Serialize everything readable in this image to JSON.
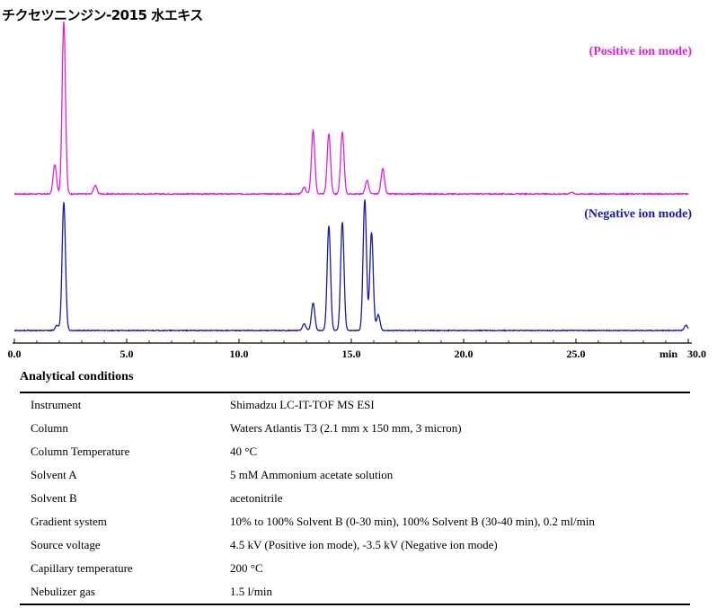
{
  "title": "チクセツニンジン-2015 水エキス",
  "chart_data": {
    "type": "line",
    "xlabel": "min",
    "xlim": [
      0.0,
      30.0
    ],
    "xticks": [
      "0.0",
      "5.0",
      "10.0",
      "15.0",
      "20.0",
      "25.0",
      "30.0"
    ],
    "series": [
      {
        "name": "(Positive ion mode)",
        "color": "#e020d8",
        "relative_intensity_peaks": [
          {
            "x": 1.8,
            "y": 0.17
          },
          {
            "x": 2.2,
            "y": 1.0
          },
          {
            "x": 3.6,
            "y": 0.05
          },
          {
            "x": 12.9,
            "y": 0.04
          },
          {
            "x": 13.3,
            "y": 0.37
          },
          {
            "x": 14.0,
            "y": 0.35
          },
          {
            "x": 14.6,
            "y": 0.36
          },
          {
            "x": 15.7,
            "y": 0.08
          },
          {
            "x": 16.4,
            "y": 0.15
          },
          {
            "x": 24.8,
            "y": 0.01
          }
        ]
      },
      {
        "name": "(Negative ion mode)",
        "color": "#1a1aa8",
        "relative_intensity_peaks": [
          {
            "x": 1.9,
            "y": 0.04
          },
          {
            "x": 2.2,
            "y": 0.98
          },
          {
            "x": 12.9,
            "y": 0.05
          },
          {
            "x": 13.3,
            "y": 0.21
          },
          {
            "x": 14.0,
            "y": 0.8
          },
          {
            "x": 14.6,
            "y": 0.83
          },
          {
            "x": 15.6,
            "y": 1.0
          },
          {
            "x": 15.9,
            "y": 0.75
          },
          {
            "x": 16.2,
            "y": 0.12
          },
          {
            "x": 29.9,
            "y": 0.04
          }
        ]
      }
    ]
  },
  "conditions": {
    "title": "Analytical conditions",
    "rows": [
      {
        "param": "Instrument",
        "value": "Shimadzu LC-IT-TOF MS ESI"
      },
      {
        "param": "Column",
        "value": "Waters Atlantis T3 (2.1 mm x 150 mm, 3 micron)"
      },
      {
        "param": "Column Temperature",
        "value": "40 °C"
      },
      {
        "param": "Solvent A",
        "value": "5 mM Ammonium acetate solution"
      },
      {
        "param": "Solvent B",
        "value": "acetonitrile"
      },
      {
        "param": "Gradient system",
        "value": "10% to 100% Solvent B (0-30 min), 100% Solvent B (30-40 min), 0.2 ml/min"
      },
      {
        "param": "Source voltage",
        "value": "4.5 kV (Positive ion mode), -3.5 kV (Negative ion mode)"
      },
      {
        "param": "Capillary temperature",
        "value": "200 °C"
      },
      {
        "param": "Nebulizer gas",
        "value": "1.5 l/min"
      }
    ]
  }
}
